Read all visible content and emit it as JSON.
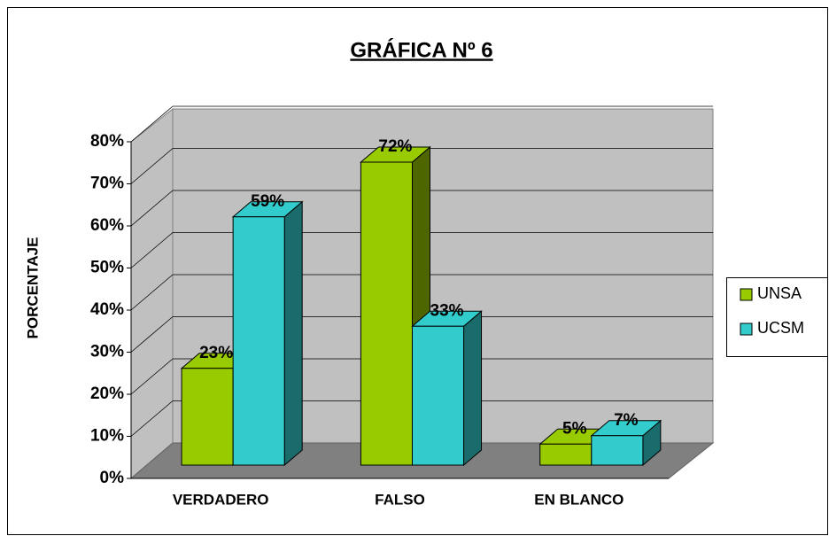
{
  "chart_data": {
    "type": "bar3d",
    "title": "GRÁFICA Nº 6",
    "ylabel": "PORCENTAJE",
    "categories": [
      "VERDADERO",
      "FALSO",
      "EN BLANCO"
    ],
    "series": [
      {
        "name": "UNSA",
        "color": "#99cc00",
        "side_color": "#4d6600",
        "values": [
          23,
          72,
          5
        ],
        "value_labels": [
          "23%",
          "72%",
          "5%"
        ]
      },
      {
        "name": "UCSM",
        "color": "#33cccc",
        "side_color": "#1a6b6b",
        "values": [
          59,
          33,
          7
        ],
        "value_labels": [
          "59%",
          "33%",
          "7%"
        ]
      }
    ],
    "ylim": [
      0,
      80
    ],
    "yticks": [
      {
        "value": 0,
        "label": "0%"
      },
      {
        "value": 10,
        "label": "10%"
      },
      {
        "value": 20,
        "label": "20%"
      },
      {
        "value": 30,
        "label": "30%"
      },
      {
        "value": 40,
        "label": "40%"
      },
      {
        "value": 50,
        "label": "50%"
      },
      {
        "value": 60,
        "label": "60%"
      },
      {
        "value": 70,
        "label": "70%"
      },
      {
        "value": 80,
        "label": "80%"
      }
    ],
    "grid": true,
    "legend": "right"
  }
}
